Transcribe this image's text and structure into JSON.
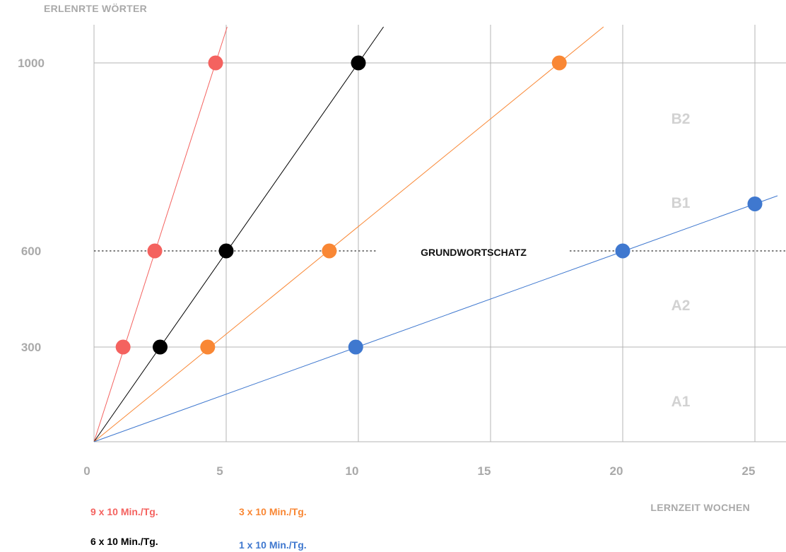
{
  "chart_data": {
    "type": "line",
    "ylabel": "ERLENRTE WÖRTER",
    "xlabel": "LERNZEIT WOCHEN",
    "xlim": [
      0,
      26
    ],
    "x_ticks": [
      "0",
      "5",
      "10",
      "15",
      "20",
      "25"
    ],
    "y_ticks": [
      {
        "value": 300,
        "label": "300"
      },
      {
        "value": 600,
        "label": "600"
      },
      {
        "value": 1000,
        "label": "1000"
      }
    ],
    "grid": true,
    "reference_line": {
      "value": 600,
      "label": "GRUNDWORTSCHATZ",
      "style": "dotted"
    },
    "levels": [
      "A1",
      "A2",
      "B1",
      "B2"
    ],
    "series": [
      {
        "name": "9 x 10 Min./Tg.",
        "color": "#f4625f",
        "x": [
          1.1,
          2.3,
          4.6
        ],
        "y": [
          300,
          600,
          1000
        ]
      },
      {
        "name": "6 x 10 Min./Tg.",
        "color": "#000000",
        "x": [
          2.5,
          5.0,
          10.0
        ],
        "y": [
          300,
          600,
          1000
        ]
      },
      {
        "name": "3 x 10 Min./Tg.",
        "color": "#f98734",
        "x": [
          4.3,
          8.9,
          17.6
        ],
        "y": [
          300,
          600,
          1000
        ]
      },
      {
        "name": "1 x 10 Min./Tg.",
        "color": "#3f78cf",
        "x": [
          9.9,
          20.0,
          25.0
        ],
        "y": [
          300,
          600,
          700
        ]
      }
    ]
  }
}
